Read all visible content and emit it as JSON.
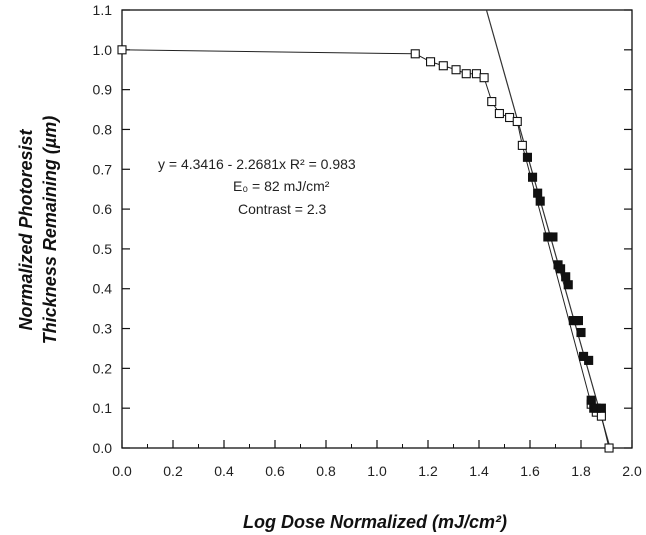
{
  "chart_data": {
    "type": "scatter",
    "xlabel": "Log Dose Normalized  (mJ/cm²)",
    "ylabel_line1": "Normalized Photoresist",
    "ylabel_line2": "Thickness Remaining (µm)",
    "xlim": [
      0.0,
      2.0
    ],
    "ylim": [
      0.0,
      1.1
    ],
    "xticks": [
      "0.0",
      "0.2",
      "0.4",
      "0.6",
      "0.8",
      "1.0",
      "1.2",
      "1.4",
      "1.6",
      "1.8",
      "2.0"
    ],
    "yticks": [
      "0.0",
      "0.1",
      "0.2",
      "0.3",
      "0.4",
      "0.5",
      "0.6",
      "0.7",
      "0.8",
      "0.9",
      "1.0",
      "1.1"
    ],
    "grid": false,
    "annotations": {
      "line1": "y = 4.3416 - 2.2681x  R² = 0.983",
      "line2": "E₀ = 82 mJ/cm²",
      "line3": "Contrast = 2.3"
    },
    "fit": {
      "intercept": 4.3416,
      "slope": -2.2681
    },
    "series": [
      {
        "marker": "open-square",
        "connected": true,
        "x": [
          0.0,
          1.15,
          1.21,
          1.26,
          1.31,
          1.35,
          1.39,
          1.42,
          1.45,
          1.48,
          1.52,
          1.55,
          1.57,
          1.84,
          1.86,
          1.88,
          1.91
        ],
        "y": [
          1.0,
          0.99,
          0.97,
          0.96,
          0.95,
          0.94,
          0.94,
          0.93,
          0.87,
          0.84,
          0.83,
          0.82,
          0.76,
          0.11,
          0.09,
          0.08,
          0.0
        ]
      },
      {
        "marker": "filled-square",
        "connected": false,
        "x": [
          1.59,
          1.61,
          1.63,
          1.64,
          1.67,
          1.69,
          1.71,
          1.72,
          1.74,
          1.75,
          1.77,
          1.78,
          1.79,
          1.8,
          1.81,
          1.83,
          1.84,
          1.85,
          1.86,
          1.88
        ],
        "y": [
          0.73,
          0.68,
          0.64,
          0.62,
          0.53,
          0.53,
          0.46,
          0.45,
          0.43,
          0.41,
          0.32,
          0.32,
          0.32,
          0.29,
          0.23,
          0.22,
          0.12,
          0.1,
          0.1,
          0.1
        ]
      }
    ]
  }
}
